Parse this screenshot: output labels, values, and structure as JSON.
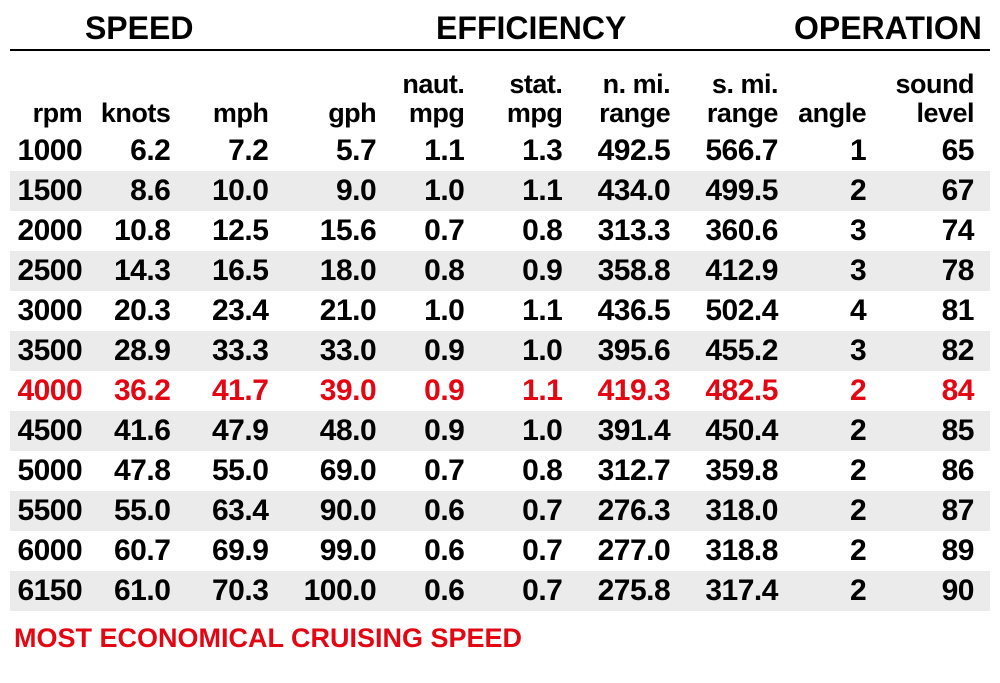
{
  "table": {
    "group_headers": [
      "SPEED",
      "EFFICIENCY",
      "OPERATION"
    ],
    "group_spans": [
      3,
      5,
      2
    ],
    "sub_headers": [
      "rpm",
      "knots",
      "mph",
      "gph",
      "naut.\nmpg",
      "stat.\nmpg",
      "n. mi.\nrange",
      "s. mi.\nrange",
      "angle",
      "sound\nlevel"
    ],
    "rows": [
      {
        "highlight": false,
        "cells": [
          "1000",
          "6.2",
          "7.2",
          "5.7",
          "1.1",
          "1.3",
          "492.5",
          "566.7",
          "1",
          "65"
        ]
      },
      {
        "highlight": false,
        "cells": [
          "1500",
          "8.6",
          "10.0",
          "9.0",
          "1.0",
          "1.1",
          "434.0",
          "499.5",
          "2",
          "67"
        ]
      },
      {
        "highlight": false,
        "cells": [
          "2000",
          "10.8",
          "12.5",
          "15.6",
          "0.7",
          "0.8",
          "313.3",
          "360.6",
          "3",
          "74"
        ]
      },
      {
        "highlight": false,
        "cells": [
          "2500",
          "14.3",
          "16.5",
          "18.0",
          "0.8",
          "0.9",
          "358.8",
          "412.9",
          "3",
          "78"
        ]
      },
      {
        "highlight": false,
        "cells": [
          "3000",
          "20.3",
          "23.4",
          "21.0",
          "1.0",
          "1.1",
          "436.5",
          "502.4",
          "4",
          "81"
        ]
      },
      {
        "highlight": false,
        "cells": [
          "3500",
          "28.9",
          "33.3",
          "33.0",
          "0.9",
          "1.0",
          "395.6",
          "455.2",
          "3",
          "82"
        ]
      },
      {
        "highlight": true,
        "cells": [
          "4000",
          "36.2",
          "41.7",
          "39.0",
          "0.9",
          "1.1",
          "419.3",
          "482.5",
          "2",
          "84"
        ]
      },
      {
        "highlight": false,
        "cells": [
          "4500",
          "41.6",
          "47.9",
          "48.0",
          "0.9",
          "1.0",
          "391.4",
          "450.4",
          "2",
          "85"
        ]
      },
      {
        "highlight": false,
        "cells": [
          "5000",
          "47.8",
          "55.0",
          "69.0",
          "0.7",
          "0.8",
          "312.7",
          "359.8",
          "2",
          "86"
        ]
      },
      {
        "highlight": false,
        "cells": [
          "5500",
          "55.0",
          "63.4",
          "90.0",
          "0.6",
          "0.7",
          "276.3",
          "318.0",
          "2",
          "87"
        ]
      },
      {
        "highlight": false,
        "cells": [
          "6000",
          "60.7",
          "69.9",
          "99.0",
          "0.6",
          "0.7",
          "277.0",
          "318.8",
          "2",
          "89"
        ]
      },
      {
        "highlight": false,
        "cells": [
          "6150",
          "61.0",
          "70.3",
          "100.0",
          "0.6",
          "0.7",
          "275.8",
          "317.4",
          "2",
          "90"
        ]
      }
    ],
    "footer": "MOST ECONOMICAL CRUISING SPEED",
    "style": {
      "background_color": "#ffffff",
      "row_shade_color": "#ebebeb",
      "text_color": "#000000",
      "highlight_color": "#e30613",
      "header_border_color": "#000000",
      "group_header_fontsize": 32,
      "sub_header_fontsize": 27,
      "body_fontsize": 30,
      "footer_fontsize": 27,
      "font_family": "Arial Narrow / condensed sans-serif",
      "font_weight": 700,
      "col_classes": [
        "c-rpm",
        "c-knots",
        "c-mph",
        "c-gph",
        "c-nmpg",
        "c-smpg",
        "c-nrng",
        "c-srng",
        "c-ang",
        "c-snd"
      ]
    }
  }
}
